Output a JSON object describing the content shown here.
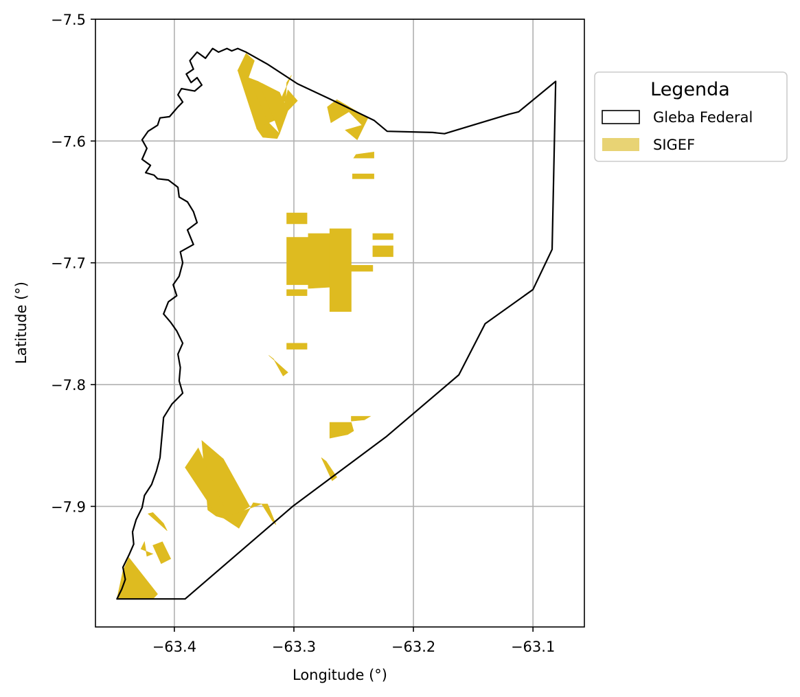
{
  "map": {
    "xlabel": "Longitude (°)",
    "ylabel": "Latitude (°)",
    "xlim": [
      -63.466,
      -63.057
    ],
    "ylim": [
      -7.999,
      -7.5
    ],
    "x_ticks": [
      {
        "value": -63.4,
        "label": "−63.4"
      },
      {
        "value": -63.3,
        "label": "−63.3"
      },
      {
        "value": -63.2,
        "label": "−63.2"
      },
      {
        "value": -63.1,
        "label": "−63.1"
      }
    ],
    "y_ticks": [
      {
        "value": -7.5,
        "label": "−7.5"
      },
      {
        "value": -7.6,
        "label": "−7.6"
      },
      {
        "value": -7.7,
        "label": "−7.7"
      },
      {
        "value": -7.8,
        "label": "−7.8"
      },
      {
        "value": -7.9,
        "label": "−7.9"
      }
    ],
    "grid": true,
    "legend": {
      "title": "Legenda",
      "placement": "outside-right-top",
      "items": [
        {
          "label": "Gleba Federal",
          "kind": "outline",
          "color": "#000000"
        },
        {
          "label": "SIGEF",
          "kind": "fill",
          "color": "#E8D374"
        }
      ]
    },
    "colors": {
      "boundary": "#000000",
      "parcel_fill": "#DEBB20",
      "grid": "#b0b0b0"
    },
    "gleba_boundary": [
      [
        -63.448,
        -7.976
      ],
      [
        -63.391,
        -7.976
      ],
      [
        -63.301,
        -7.9
      ],
      [
        -63.223,
        -7.843
      ],
      [
        -63.162,
        -7.792
      ],
      [
        -63.14,
        -7.75
      ],
      [
        -63.1,
        -7.722
      ],
      [
        -63.084,
        -7.689
      ],
      [
        -63.081,
        -7.551
      ],
      [
        -63.112,
        -7.576
      ],
      [
        -63.12,
        -7.578
      ],
      [
        -63.174,
        -7.594
      ],
      [
        -63.184,
        -7.593
      ],
      [
        -63.222,
        -7.592
      ],
      [
        -63.233,
        -7.583
      ],
      [
        -63.271,
        -7.565
      ],
      [
        -63.297,
        -7.553
      ],
      [
        -63.322,
        -7.537
      ],
      [
        -63.34,
        -7.527
      ],
      [
        -63.347,
        -7.524
      ],
      [
        -63.352,
        -7.526
      ],
      [
        -63.356,
        -7.524
      ],
      [
        -63.363,
        -7.527
      ],
      [
        -63.368,
        -7.524
      ],
      [
        -63.374,
        -7.532
      ],
      [
        -63.381,
        -7.527
      ],
      [
        -63.387,
        -7.534
      ],
      [
        -63.384,
        -7.541
      ],
      [
        -63.39,
        -7.545
      ],
      [
        -63.386,
        -7.552
      ],
      [
        -63.381,
        -7.548
      ],
      [
        -63.377,
        -7.554
      ],
      [
        -63.383,
        -7.559
      ],
      [
        -63.394,
        -7.557
      ],
      [
        -63.397,
        -7.562
      ],
      [
        -63.393,
        -7.568
      ],
      [
        -63.397,
        -7.572
      ],
      [
        -63.404,
        -7.58
      ],
      [
        -63.412,
        -7.581
      ],
      [
        -63.414,
        -7.587
      ],
      [
        -63.422,
        -7.592
      ],
      [
        -63.427,
        -7.599
      ],
      [
        -63.423,
        -7.606
      ],
      [
        -63.427,
        -7.615
      ],
      [
        -63.42,
        -7.62
      ],
      [
        -63.424,
        -7.626
      ],
      [
        -63.417,
        -7.628
      ],
      [
        -63.414,
        -7.631
      ],
      [
        -63.405,
        -7.632
      ],
      [
        -63.397,
        -7.638
      ],
      [
        -63.396,
        -7.646
      ],
      [
        -63.389,
        -7.65
      ],
      [
        -63.384,
        -7.658
      ],
      [
        -63.381,
        -7.667
      ],
      [
        -63.389,
        -7.673
      ],
      [
        -63.384,
        -7.685
      ],
      [
        -63.395,
        -7.691
      ],
      [
        -63.393,
        -7.7
      ],
      [
        -63.396,
        -7.711
      ],
      [
        -63.401,
        -7.718
      ],
      [
        -63.398,
        -7.727
      ],
      [
        -63.405,
        -7.732
      ],
      [
        -63.409,
        -7.742
      ],
      [
        -63.403,
        -7.749
      ],
      [
        -63.398,
        -7.756
      ],
      [
        -63.393,
        -7.766
      ],
      [
        -63.397,
        -7.775
      ],
      [
        -63.395,
        -7.786
      ],
      [
        -63.396,
        -7.797
      ],
      [
        -63.393,
        -7.807
      ],
      [
        -63.402,
        -7.816
      ],
      [
        -63.409,
        -7.827
      ],
      [
        -63.41,
        -7.838
      ],
      [
        -63.411,
        -7.849
      ],
      [
        -63.412,
        -7.86
      ],
      [
        -63.415,
        -7.871
      ],
      [
        -63.419,
        -7.882
      ],
      [
        -63.425,
        -7.891
      ],
      [
        -63.427,
        -7.901
      ],
      [
        -63.432,
        -7.911
      ],
      [
        -63.435,
        -7.921
      ],
      [
        -63.434,
        -7.931
      ],
      [
        -63.438,
        -7.94
      ],
      [
        -63.443,
        -7.95
      ],
      [
        -63.441,
        -7.96
      ],
      [
        -63.444,
        -7.968
      ],
      [
        -63.448,
        -7.976
      ]
    ],
    "sigef_parcels": [
      [
        [
          -63.347,
          -7.542
        ],
        [
          -63.34,
          -7.528
        ],
        [
          -63.333,
          -7.534
        ],
        [
          -63.338,
          -7.548
        ]
      ],
      [
        [
          -63.347,
          -7.542
        ],
        [
          -63.338,
          -7.548
        ],
        [
          -63.321,
          -7.585
        ],
        [
          -63.331,
          -7.59
        ]
      ],
      [
        [
          -63.338,
          -7.548
        ],
        [
          -63.33,
          -7.551
        ],
        [
          -63.316,
          -7.583
        ],
        [
          -63.321,
          -7.585
        ]
      ],
      [
        [
          -63.33,
          -7.551
        ],
        [
          -63.312,
          -7.56
        ],
        [
          -63.305,
          -7.575
        ],
        [
          -63.312,
          -7.594
        ],
        [
          -63.316,
          -7.583
        ]
      ],
      [
        [
          -63.331,
          -7.59
        ],
        [
          -63.321,
          -7.585
        ],
        [
          -63.312,
          -7.594
        ],
        [
          -63.314,
          -7.598
        ],
        [
          -63.326,
          -7.597
        ]
      ],
      [
        [
          -63.305,
          -7.575
        ],
        [
          -63.297,
          -7.567
        ],
        [
          -63.305,
          -7.558
        ],
        [
          -63.313,
          -7.589
        ]
      ],
      [
        [
          -63.306,
          -7.552
        ],
        [
          -63.302,
          -7.546
        ],
        [
          -63.311,
          -7.566
        ],
        [
          -63.307,
          -7.568
        ]
      ],
      [
        [
          -63.272,
          -7.572
        ],
        [
          -63.264,
          -7.566
        ],
        [
          -63.254,
          -7.576
        ],
        [
          -63.269,
          -7.585
        ]
      ],
      [
        [
          -63.254,
          -7.576
        ],
        [
          -63.264,
          -7.566
        ],
        [
          -63.238,
          -7.581
        ],
        [
          -63.243,
          -7.587
        ]
      ],
      [
        [
          -63.243,
          -7.587
        ],
        [
          -63.238,
          -7.581
        ],
        [
          -63.247,
          -7.599
        ],
        [
          -63.257,
          -7.591
        ]
      ],
      [
        [
          -63.248,
          -7.611
        ],
        [
          -63.233,
          -7.609
        ],
        [
          -63.233,
          -7.614
        ],
        [
          -63.25,
          -7.614
        ]
      ],
      [
        [
          -63.251,
          -7.627
        ],
        [
          -63.233,
          -7.627
        ],
        [
          -63.233,
          -7.631
        ],
        [
          -63.251,
          -7.631
        ]
      ],
      [
        [
          -63.306,
          -7.659
        ],
        [
          -63.289,
          -7.659
        ],
        [
          -63.289,
          -7.668
        ],
        [
          -63.306,
          -7.668
        ]
      ],
      [
        [
          -63.306,
          -7.679
        ],
        [
          -63.288,
          -7.679
        ],
        [
          -63.288,
          -7.718
        ],
        [
          -63.306,
          -7.718
        ]
      ],
      [
        [
          -63.288,
          -7.676
        ],
        [
          -63.27,
          -7.676
        ],
        [
          -63.27,
          -7.72
        ],
        [
          -63.288,
          -7.721
        ]
      ],
      [
        [
          -63.27,
          -7.672
        ],
        [
          -63.252,
          -7.672
        ],
        [
          -63.252,
          -7.74
        ],
        [
          -63.27,
          -7.74
        ]
      ],
      [
        [
          -63.306,
          -7.722
        ],
        [
          -63.289,
          -7.722
        ],
        [
          -63.289,
          -7.727
        ],
        [
          -63.306,
          -7.727
        ]
      ],
      [
        [
          -63.252,
          -7.702
        ],
        [
          -63.234,
          -7.702
        ],
        [
          -63.234,
          -7.707
        ],
        [
          -63.252,
          -7.707
        ]
      ],
      [
        [
          -63.234,
          -7.676
        ],
        [
          -63.217,
          -7.676
        ],
        [
          -63.217,
          -7.681
        ],
        [
          -63.234,
          -7.681
        ]
      ],
      [
        [
          -63.234,
          -7.686
        ],
        [
          -63.217,
          -7.686
        ],
        [
          -63.217,
          -7.695
        ],
        [
          -63.234,
          -7.695
        ]
      ],
      [
        [
          -63.306,
          -7.766
        ],
        [
          -63.289,
          -7.766
        ],
        [
          -63.289,
          -7.771
        ],
        [
          -63.306,
          -7.771
        ]
      ],
      [
        [
          -63.321,
          -7.776
        ],
        [
          -63.317,
          -7.779
        ],
        [
          -63.309,
          -7.793
        ],
        [
          -63.305,
          -7.79
        ]
      ],
      [
        [
          -63.27,
          -7.831
        ],
        [
          -63.252,
          -7.831
        ],
        [
          -63.25,
          -7.838
        ],
        [
          -63.255,
          -7.841
        ],
        [
          -63.27,
          -7.844
        ]
      ],
      [
        [
          -63.252,
          -7.826
        ],
        [
          -63.236,
          -7.826
        ],
        [
          -63.241,
          -7.829
        ],
        [
          -63.252,
          -7.83
        ]
      ],
      [
        [
          -63.277,
          -7.86
        ],
        [
          -63.273,
          -7.863
        ],
        [
          -63.264,
          -7.876
        ],
        [
          -63.268,
          -7.879
        ]
      ],
      [
        [
          -63.377,
          -7.846
        ],
        [
          -63.359,
          -7.861
        ],
        [
          -63.337,
          -7.9
        ],
        [
          -63.354,
          -7.911
        ],
        [
          -63.365,
          -7.908
        ],
        [
          -63.372,
          -7.903
        ]
      ],
      [
        [
          -63.38,
          -7.852
        ],
        [
          -63.391,
          -7.868
        ],
        [
          -63.366,
          -7.905
        ],
        [
          -63.346,
          -7.918
        ],
        [
          -63.355,
          -7.908
        ]
      ],
      [
        [
          -63.346,
          -7.918
        ],
        [
          -63.355,
          -7.908
        ],
        [
          -63.346,
          -7.905
        ],
        [
          -63.327,
          -7.898
        ],
        [
          -63.334,
          -7.897
        ]
      ],
      [
        [
          -63.327,
          -7.898
        ],
        [
          -63.318,
          -7.912
        ],
        [
          -63.315,
          -7.915
        ],
        [
          -63.322,
          -7.898
        ]
      ],
      [
        [
          -63.418,
          -7.905
        ],
        [
          -63.409,
          -7.914
        ],
        [
          -63.406,
          -7.92
        ],
        [
          -63.422,
          -7.906
        ]
      ],
      [
        [
          -63.418,
          -7.932
        ],
        [
          -63.41,
          -7.929
        ],
        [
          -63.403,
          -7.943
        ],
        [
          -63.411,
          -7.947
        ]
      ],
      [
        [
          -63.428,
          -7.935
        ],
        [
          -63.425,
          -7.929
        ],
        [
          -63.423,
          -7.941
        ],
        [
          -63.418,
          -7.939
        ]
      ],
      [
        [
          -63.448,
          -7.976
        ],
        [
          -63.443,
          -7.953
        ],
        [
          -63.438,
          -7.942
        ],
        [
          -63.414,
          -7.972
        ],
        [
          -63.418,
          -7.976
        ]
      ]
    ]
  }
}
